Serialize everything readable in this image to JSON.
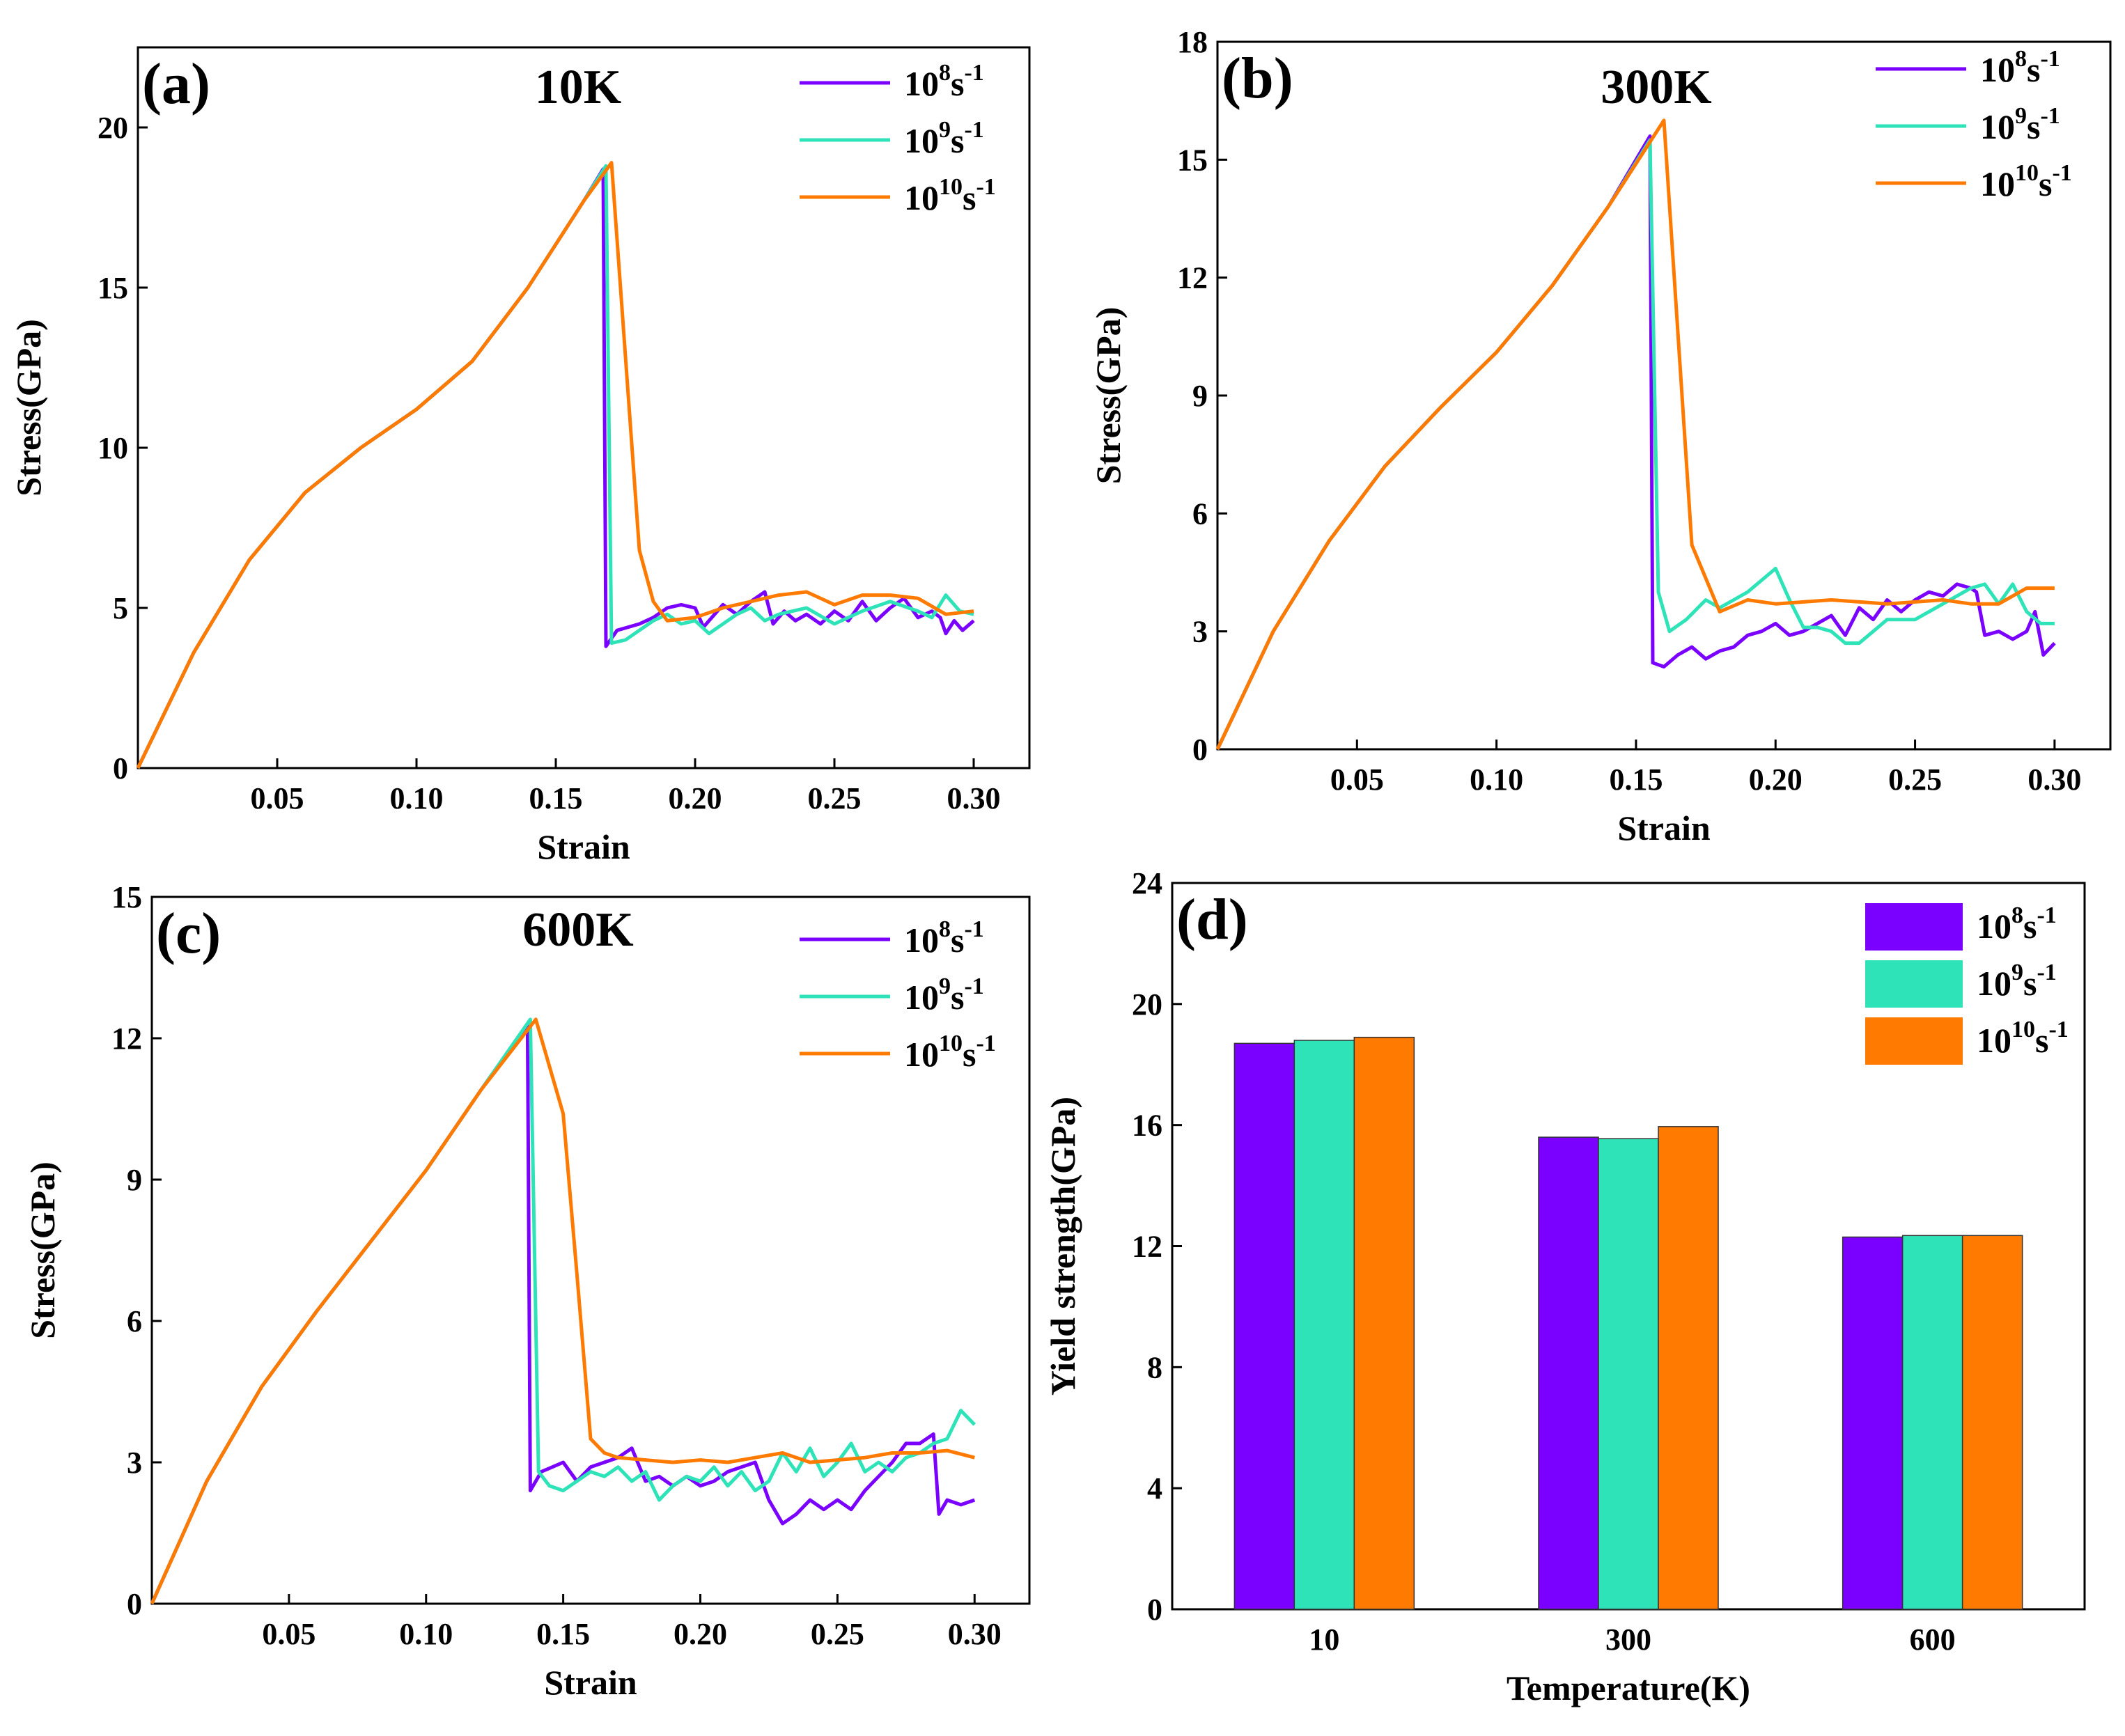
{
  "colors": {
    "rate_1e8": "#7a00ff",
    "rate_1e9": "#2fe3b8",
    "rate_1e10": "#ff7a00"
  },
  "legend": [
    {
      "base": "10",
      "exp": "8",
      "unit": "s",
      "unit_exp": "-1",
      "color_key": "rate_1e8"
    },
    {
      "base": "10",
      "exp": "9",
      "unit": "s",
      "unit_exp": "-1",
      "color_key": "rate_1e9"
    },
    {
      "base": "10",
      "exp": "10",
      "unit": "s",
      "unit_exp": "-1",
      "color_key": "rate_1e10"
    }
  ],
  "chart_data": [
    {
      "id": "a",
      "panel_label": "(a)",
      "title": "10K",
      "type": "line",
      "xlabel": "Strain",
      "ylabel": "Stress(GPa)",
      "xlim": [
        0,
        0.32
      ],
      "ylim": [
        0,
        22.5
      ],
      "xticks": [
        0.05,
        0.1,
        0.15,
        0.2,
        0.25,
        0.3
      ],
      "xtick_labels": [
        "0.05",
        "0.10",
        "0.15",
        "0.20",
        "0.25",
        "0.30"
      ],
      "yticks": [
        0,
        5,
        10,
        15,
        20
      ],
      "ytick_labels": [
        "0",
        "5",
        "10",
        "15",
        "20"
      ],
      "series": [
        {
          "name": "10^8 s^-1",
          "color_key": "rate_1e8",
          "x": [
            0,
            0.02,
            0.04,
            0.06,
            0.08,
            0.1,
            0.12,
            0.14,
            0.16,
            0.167,
            0.168,
            0.172,
            0.176,
            0.18,
            0.185,
            0.19,
            0.195,
            0.2,
            0.203,
            0.207,
            0.21,
            0.215,
            0.22,
            0.225,
            0.228,
            0.232,
            0.236,
            0.24,
            0.245,
            0.25,
            0.255,
            0.26,
            0.265,
            0.27,
            0.275,
            0.28,
            0.285,
            0.288,
            0.29,
            0.293,
            0.296,
            0.3
          ],
          "y": [
            0,
            3.6,
            6.5,
            8.6,
            10.0,
            11.2,
            12.7,
            15.0,
            17.7,
            18.7,
            3.8,
            4.3,
            4.4,
            4.5,
            4.7,
            5.0,
            5.1,
            5.0,
            4.4,
            4.8,
            5.1,
            4.8,
            5.2,
            5.5,
            4.5,
            4.9,
            4.6,
            4.8,
            4.5,
            4.9,
            4.6,
            5.2,
            4.6,
            5.0,
            5.3,
            4.7,
            4.9,
            4.7,
            4.2,
            4.6,
            4.3,
            4.6
          ]
        },
        {
          "name": "10^9 s^-1",
          "color_key": "rate_1e9",
          "x": [
            0,
            0.02,
            0.04,
            0.06,
            0.08,
            0.1,
            0.12,
            0.14,
            0.16,
            0.168,
            0.17,
            0.175,
            0.18,
            0.185,
            0.19,
            0.195,
            0.2,
            0.205,
            0.21,
            0.215,
            0.22,
            0.225,
            0.23,
            0.24,
            0.25,
            0.26,
            0.27,
            0.28,
            0.285,
            0.29,
            0.295,
            0.3
          ],
          "y": [
            0,
            3.6,
            6.5,
            8.6,
            10.0,
            11.2,
            12.7,
            15.0,
            17.7,
            18.8,
            3.9,
            4.0,
            4.3,
            4.6,
            4.8,
            4.5,
            4.6,
            4.2,
            4.5,
            4.8,
            5.0,
            4.6,
            4.8,
            5.0,
            4.5,
            4.9,
            5.2,
            4.9,
            4.7,
            5.4,
            4.9,
            4.8
          ]
        },
        {
          "name": "10^10 s^-1",
          "color_key": "rate_1e10",
          "x": [
            0,
            0.02,
            0.04,
            0.06,
            0.08,
            0.1,
            0.12,
            0.14,
            0.16,
            0.17,
            0.18,
            0.185,
            0.19,
            0.2,
            0.21,
            0.22,
            0.23,
            0.24,
            0.25,
            0.26,
            0.27,
            0.28,
            0.29,
            0.3
          ],
          "y": [
            0,
            3.6,
            6.5,
            8.6,
            10.0,
            11.2,
            12.7,
            15.0,
            17.7,
            18.9,
            6.8,
            5.2,
            4.6,
            4.7,
            5.0,
            5.2,
            5.4,
            5.5,
            5.1,
            5.4,
            5.4,
            5.3,
            4.8,
            4.9
          ]
        }
      ]
    },
    {
      "id": "b",
      "panel_label": "(b)",
      "title": "300K",
      "type": "line",
      "xlabel": "Strain",
      "ylabel": "Stress(GPa)",
      "xlim": [
        0,
        0.32
      ],
      "ylim": [
        0,
        18
      ],
      "xticks": [
        0.05,
        0.1,
        0.15,
        0.2,
        0.25,
        0.3
      ],
      "xtick_labels": [
        "0.05",
        "0.10",
        "0.15",
        "0.20",
        "0.25",
        "0.30"
      ],
      "yticks": [
        0,
        3,
        6,
        9,
        12,
        15,
        18
      ],
      "ytick_labels": [
        "0",
        "3",
        "6",
        "9",
        "12",
        "15",
        "18"
      ],
      "series": [
        {
          "name": "10^8 s^-1",
          "color_key": "rate_1e8",
          "x": [
            0,
            0.02,
            0.04,
            0.06,
            0.08,
            0.1,
            0.12,
            0.14,
            0.155,
            0.156,
            0.16,
            0.165,
            0.17,
            0.175,
            0.18,
            0.185,
            0.19,
            0.195,
            0.2,
            0.205,
            0.21,
            0.215,
            0.22,
            0.225,
            0.23,
            0.235,
            0.24,
            0.245,
            0.25,
            0.255,
            0.26,
            0.265,
            0.27,
            0.272,
            0.275,
            0.28,
            0.285,
            0.29,
            0.293,
            0.296,
            0.3
          ],
          "y": [
            0,
            3.0,
            5.3,
            7.2,
            8.7,
            10.1,
            11.8,
            13.8,
            15.6,
            2.2,
            2.1,
            2.4,
            2.6,
            2.3,
            2.5,
            2.6,
            2.9,
            3.0,
            3.2,
            2.9,
            3.0,
            3.2,
            3.4,
            2.9,
            3.6,
            3.3,
            3.8,
            3.5,
            3.8,
            4.0,
            3.9,
            4.2,
            4.1,
            4.0,
            2.9,
            3.0,
            2.8,
            3.0,
            3.5,
            2.4,
            2.7
          ]
        },
        {
          "name": "10^9 s^-1",
          "color_key": "rate_1e9",
          "x": [
            0,
            0.02,
            0.04,
            0.06,
            0.08,
            0.1,
            0.12,
            0.14,
            0.155,
            0.158,
            0.162,
            0.168,
            0.175,
            0.18,
            0.185,
            0.19,
            0.2,
            0.205,
            0.21,
            0.215,
            0.22,
            0.225,
            0.23,
            0.235,
            0.24,
            0.25,
            0.26,
            0.27,
            0.275,
            0.28,
            0.285,
            0.29,
            0.295,
            0.3
          ],
          "y": [
            0,
            3.0,
            5.3,
            7.2,
            8.7,
            10.1,
            11.8,
            13.8,
            15.5,
            4.0,
            3.0,
            3.3,
            3.8,
            3.6,
            3.8,
            4.0,
            4.6,
            3.8,
            3.1,
            3.1,
            3.0,
            2.7,
            2.7,
            3.0,
            3.3,
            3.3,
            3.7,
            4.1,
            4.2,
            3.7,
            4.2,
            3.5,
            3.2,
            3.2
          ]
        },
        {
          "name": "10^10 s^-1",
          "color_key": "rate_1e10",
          "x": [
            0,
            0.02,
            0.04,
            0.06,
            0.08,
            0.1,
            0.12,
            0.14,
            0.16,
            0.17,
            0.18,
            0.19,
            0.2,
            0.22,
            0.24,
            0.26,
            0.27,
            0.28,
            0.29,
            0.3
          ],
          "y": [
            0,
            3.0,
            5.3,
            7.2,
            8.7,
            10.1,
            11.8,
            13.8,
            16.0,
            5.2,
            3.5,
            3.8,
            3.7,
            3.8,
            3.7,
            3.8,
            3.7,
            3.7,
            4.1,
            4.1
          ]
        }
      ]
    },
    {
      "id": "c",
      "panel_label": "(c)",
      "title": "600K",
      "type": "line",
      "xlabel": "Strain",
      "ylabel": "Stress(GPa)",
      "xlim": [
        0,
        0.32
      ],
      "ylim": [
        0,
        15
      ],
      "xticks": [
        0.05,
        0.1,
        0.15,
        0.2,
        0.25,
        0.3
      ],
      "xtick_labels": [
        "0.05",
        "0.10",
        "0.15",
        "0.20",
        "0.25",
        "0.30"
      ],
      "yticks": [
        0,
        3,
        6,
        9,
        12,
        15
      ],
      "ytick_labels": [
        "0",
        "3",
        "6",
        "9",
        "12",
        "15"
      ],
      "series": [
        {
          "name": "10^8 s^-1",
          "color_key": "rate_1e8",
          "x": [
            0,
            0.02,
            0.04,
            0.06,
            0.08,
            0.1,
            0.12,
            0.137,
            0.138,
            0.142,
            0.146,
            0.15,
            0.155,
            0.16,
            0.165,
            0.17,
            0.175,
            0.18,
            0.185,
            0.19,
            0.195,
            0.2,
            0.205,
            0.21,
            0.215,
            0.22,
            0.225,
            0.23,
            0.235,
            0.24,
            0.245,
            0.25,
            0.255,
            0.26,
            0.265,
            0.27,
            0.275,
            0.28,
            0.285,
            0.287,
            0.29,
            0.295,
            0.3
          ],
          "y": [
            0,
            2.6,
            4.6,
            6.2,
            7.7,
            9.2,
            10.9,
            12.3,
            2.4,
            2.8,
            2.9,
            3.0,
            2.6,
            2.9,
            3.0,
            3.1,
            3.3,
            2.6,
            2.7,
            2.5,
            2.7,
            2.5,
            2.6,
            2.8,
            2.9,
            3.0,
            2.2,
            1.7,
            1.9,
            2.2,
            2.0,
            2.2,
            2.0,
            2.4,
            2.7,
            3.0,
            3.4,
            3.4,
            3.6,
            1.9,
            2.2,
            2.1,
            2.2
          ]
        },
        {
          "name": "10^9 s^-1",
          "color_key": "rate_1e9",
          "x": [
            0,
            0.02,
            0.04,
            0.06,
            0.08,
            0.1,
            0.12,
            0.138,
            0.141,
            0.145,
            0.15,
            0.155,
            0.16,
            0.165,
            0.17,
            0.175,
            0.18,
            0.185,
            0.19,
            0.195,
            0.2,
            0.205,
            0.21,
            0.215,
            0.22,
            0.225,
            0.23,
            0.235,
            0.24,
            0.245,
            0.25,
            0.255,
            0.26,
            0.265,
            0.27,
            0.275,
            0.28,
            0.285,
            0.29,
            0.295,
            0.3
          ],
          "y": [
            0,
            2.6,
            4.6,
            6.2,
            7.7,
            9.2,
            10.9,
            12.4,
            2.8,
            2.5,
            2.4,
            2.6,
            2.8,
            2.7,
            2.9,
            2.6,
            2.8,
            2.2,
            2.5,
            2.7,
            2.6,
            2.9,
            2.5,
            2.8,
            2.4,
            2.6,
            3.2,
            2.8,
            3.3,
            2.7,
            3.0,
            3.4,
            2.8,
            3.0,
            2.8,
            3.1,
            3.2,
            3.4,
            3.5,
            4.1,
            3.8
          ]
        },
        {
          "name": "10^10 s^-1",
          "color_key": "rate_1e10",
          "x": [
            0,
            0.02,
            0.04,
            0.06,
            0.08,
            0.1,
            0.12,
            0.14,
            0.15,
            0.155,
            0.16,
            0.165,
            0.17,
            0.18,
            0.19,
            0.2,
            0.21,
            0.22,
            0.23,
            0.24,
            0.25,
            0.26,
            0.27,
            0.28,
            0.29,
            0.3
          ],
          "y": [
            0,
            2.6,
            4.6,
            6.2,
            7.7,
            9.2,
            10.9,
            12.4,
            10.4,
            7.0,
            3.5,
            3.2,
            3.1,
            3.05,
            3.0,
            3.05,
            3.0,
            3.1,
            3.2,
            3.0,
            3.05,
            3.1,
            3.2,
            3.2,
            3.25,
            3.1
          ]
        }
      ]
    },
    {
      "id": "d",
      "panel_label": "(d)",
      "title": "",
      "type": "bar",
      "xlabel": "Temperature(K)",
      "ylabel": "Yield strength(GPa)",
      "categories": [
        "10",
        "300",
        "600"
      ],
      "ylim": [
        0,
        24
      ],
      "yticks": [
        0,
        4,
        8,
        12,
        16,
        20,
        24
      ],
      "ytick_labels": [
        "0",
        "4",
        "8",
        "12",
        "16",
        "20",
        "24"
      ],
      "series": [
        {
          "name": "10^8 s^-1",
          "color_key": "rate_1e8",
          "values": [
            18.7,
            15.6,
            12.3
          ]
        },
        {
          "name": "10^9 s^-1",
          "color_key": "rate_1e9",
          "values": [
            18.8,
            15.55,
            12.35
          ]
        },
        {
          "name": "10^10 s^-1",
          "color_key": "rate_1e10",
          "values": [
            18.9,
            15.95,
            12.35
          ]
        }
      ]
    }
  ]
}
